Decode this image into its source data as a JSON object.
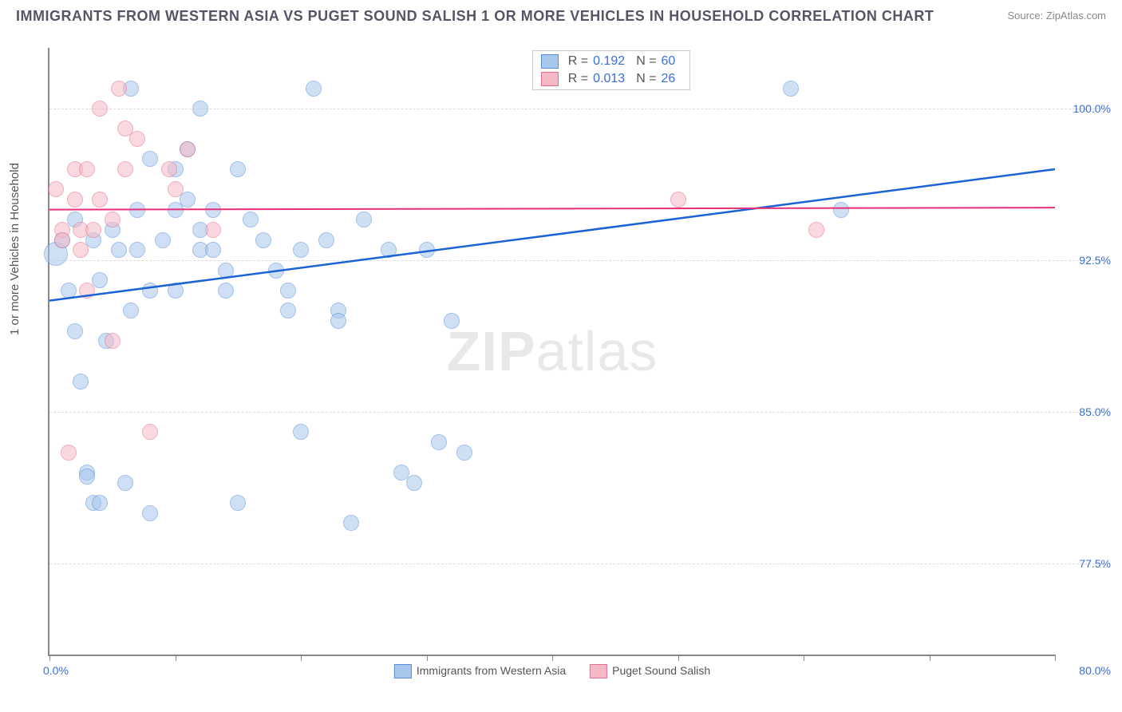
{
  "title": "IMMIGRANTS FROM WESTERN ASIA VS PUGET SOUND SALISH 1 OR MORE VEHICLES IN HOUSEHOLD CORRELATION CHART",
  "source": "Source: ZipAtlas.com",
  "ylabel": "1 or more Vehicles in Household",
  "watermark_bold": "ZIP",
  "watermark_rest": "atlas",
  "chart": {
    "type": "scatter",
    "xlim": [
      0,
      80
    ],
    "ylim": [
      73,
      103
    ],
    "x_tick_positions": [
      0,
      10,
      20,
      30,
      40,
      50,
      60,
      70,
      80
    ],
    "x_axis_left_label": "0.0%",
    "x_axis_right_label": "80.0%",
    "y_ticks": [
      {
        "v": 77.5,
        "label": "77.5%"
      },
      {
        "v": 85.0,
        "label": "85.0%"
      },
      {
        "v": 92.5,
        "label": "92.5%"
      },
      {
        "v": 100.0,
        "label": "100.0%"
      }
    ],
    "grid_color": "#dddddd",
    "background_color": "#ffffff",
    "marker_radius": 9,
    "series": [
      {
        "name": "Immigrants from Western Asia",
        "fill": "#a8c7ed",
        "stroke": "#5b8dd6",
        "fill_opacity": 0.55,
        "R": "0.192",
        "N": "60",
        "trend": {
          "x1": 0,
          "y1": 90.5,
          "x2": 80,
          "y2": 97.0,
          "color": "#1b62d6",
          "width": 2.5
        },
        "points": [
          {
            "x": 0.5,
            "y": 92.8,
            "r": 14
          },
          {
            "x": 1,
            "y": 93.5
          },
          {
            "x": 1.5,
            "y": 91
          },
          {
            "x": 2,
            "y": 94.5
          },
          {
            "x": 2,
            "y": 89
          },
          {
            "x": 2.5,
            "y": 86.5
          },
          {
            "x": 3,
            "y": 82
          },
          {
            "x": 3,
            "y": 81.8
          },
          {
            "x": 3.5,
            "y": 93.5
          },
          {
            "x": 3.5,
            "y": 80.5
          },
          {
            "x": 4,
            "y": 80.5
          },
          {
            "x": 4,
            "y": 91.5
          },
          {
            "x": 4.5,
            "y": 88.5
          },
          {
            "x": 5,
            "y": 94
          },
          {
            "x": 5.5,
            "y": 93
          },
          {
            "x": 6,
            "y": 81.5
          },
          {
            "x": 6.5,
            "y": 101
          },
          {
            "x": 6.5,
            "y": 90
          },
          {
            "x": 7,
            "y": 95
          },
          {
            "x": 7,
            "y": 93
          },
          {
            "x": 8,
            "y": 97.5
          },
          {
            "x": 8,
            "y": 91
          },
          {
            "x": 8,
            "y": 80
          },
          {
            "x": 9,
            "y": 93.5
          },
          {
            "x": 10,
            "y": 97
          },
          {
            "x": 10,
            "y": 95
          },
          {
            "x": 10,
            "y": 91
          },
          {
            "x": 11,
            "y": 98
          },
          {
            "x": 11,
            "y": 95.5
          },
          {
            "x": 12,
            "y": 100
          },
          {
            "x": 12,
            "y": 94
          },
          {
            "x": 12,
            "y": 93
          },
          {
            "x": 13,
            "y": 95
          },
          {
            "x": 13,
            "y": 93
          },
          {
            "x": 14,
            "y": 92
          },
          {
            "x": 14,
            "y": 91
          },
          {
            "x": 15,
            "y": 97
          },
          {
            "x": 15,
            "y": 80.5
          },
          {
            "x": 16,
            "y": 94.5
          },
          {
            "x": 17,
            "y": 93.5
          },
          {
            "x": 18,
            "y": 92
          },
          {
            "x": 19,
            "y": 91
          },
          {
            "x": 19,
            "y": 90
          },
          {
            "x": 20,
            "y": 93
          },
          {
            "x": 20,
            "y": 84
          },
          {
            "x": 21,
            "y": 101
          },
          {
            "x": 22,
            "y": 93.5
          },
          {
            "x": 23,
            "y": 90
          },
          {
            "x": 23,
            "y": 89.5
          },
          {
            "x": 24,
            "y": 79.5
          },
          {
            "x": 25,
            "y": 94.5
          },
          {
            "x": 27,
            "y": 93
          },
          {
            "x": 28,
            "y": 82
          },
          {
            "x": 29,
            "y": 81.5
          },
          {
            "x": 30,
            "y": 93
          },
          {
            "x": 31,
            "y": 83.5
          },
          {
            "x": 32,
            "y": 89.5
          },
          {
            "x": 33,
            "y": 83
          },
          {
            "x": 59,
            "y": 101
          },
          {
            "x": 63,
            "y": 95
          }
        ]
      },
      {
        "name": "Puget Sound Salish",
        "fill": "#f5b9c6",
        "stroke": "#e26f8f",
        "fill_opacity": 0.55,
        "R": "0.013",
        "N": "26",
        "trend": {
          "x1": 0,
          "y1": 95.0,
          "x2": 80,
          "y2": 95.1,
          "color": "#e73079",
          "width": 2
        },
        "points": [
          {
            "x": 0.5,
            "y": 96
          },
          {
            "x": 1,
            "y": 94
          },
          {
            "x": 1,
            "y": 93.5
          },
          {
            "x": 1.5,
            "y": 83
          },
          {
            "x": 2,
            "y": 97
          },
          {
            "x": 2,
            "y": 95.5
          },
          {
            "x": 2.5,
            "y": 94
          },
          {
            "x": 2.5,
            "y": 93
          },
          {
            "x": 3,
            "y": 97
          },
          {
            "x": 3,
            "y": 91
          },
          {
            "x": 3.5,
            "y": 94
          },
          {
            "x": 4,
            "y": 95.5
          },
          {
            "x": 4,
            "y": 100
          },
          {
            "x": 5,
            "y": 94.5
          },
          {
            "x": 5,
            "y": 88.5
          },
          {
            "x": 5.5,
            "y": 101
          },
          {
            "x": 6,
            "y": 99
          },
          {
            "x": 6,
            "y": 97
          },
          {
            "x": 7,
            "y": 98.5
          },
          {
            "x": 8,
            "y": 84
          },
          {
            "x": 9.5,
            "y": 97
          },
          {
            "x": 10,
            "y": 96
          },
          {
            "x": 11,
            "y": 98
          },
          {
            "x": 13,
            "y": 94
          },
          {
            "x": 50,
            "y": 95.5
          },
          {
            "x": 61,
            "y": 94
          }
        ]
      }
    ],
    "bottom_legend": [
      {
        "label": "Immigrants from Western Asia",
        "fill": "#a8c7ed",
        "stroke": "#5b8dd6"
      },
      {
        "label": "Puget Sound Salish",
        "fill": "#f5b9c6",
        "stroke": "#e26f8f"
      }
    ]
  }
}
